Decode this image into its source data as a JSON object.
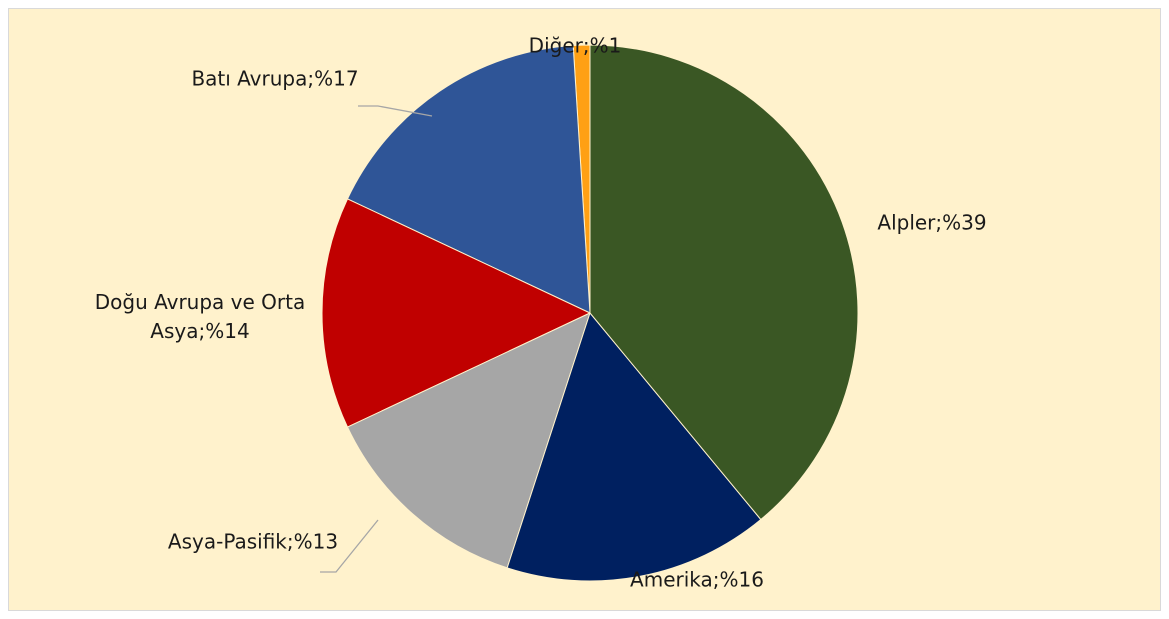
{
  "chart_data": {
    "type": "pie",
    "values": [
      39,
      16,
      13,
      14,
      17,
      1
    ],
    "value_labels": [
      "Alpler;%39",
      "Amerika;%16",
      "Asya-Pasifik;%13",
      "Doğu Avrupa ve Orta Asya;%14",
      "Batı Avrupa;%17",
      "Diğer;%1"
    ],
    "colors": [
      "#3a5724",
      "#002060",
      "#a6a6a6",
      "#c00000",
      "#2f5597",
      "#ffa014"
    ]
  }
}
